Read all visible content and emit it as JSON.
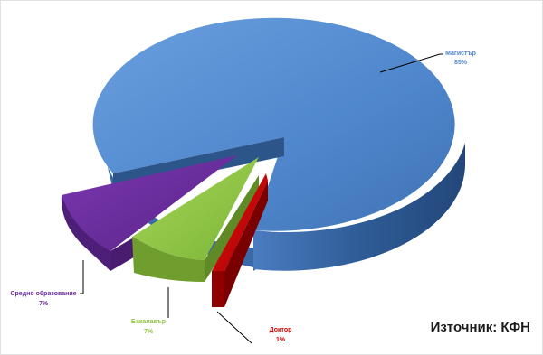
{
  "chart_data": {
    "type": "pie",
    "style": "3d-exploded",
    "slices": [
      {
        "label": "Магистър",
        "value": 85,
        "value_label": "85%",
        "color": "#4f86cc",
        "label_color": "#4f86cc"
      },
      {
        "label": "Доктор",
        "value": 1,
        "value_label": "1%",
        "color": "#cc0000",
        "label_color": "#cc0000"
      },
      {
        "label": "Бакалавър",
        "value": 7,
        "value_label": "7%",
        "color": "#8dc63f",
        "label_color": "#8dc63f"
      },
      {
        "label": "Средно образование",
        "value": 7,
        "value_label": "7%",
        "color": "#6b2c9c",
        "label_color": "#6b2c9c"
      }
    ],
    "legend": "none"
  },
  "source_text": "Източник: КФН"
}
